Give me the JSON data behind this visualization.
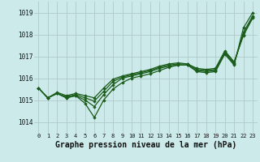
{
  "background_color": "#cceaea",
  "grid_color": "#b0c8c8",
  "line_color": "#1a5c1a",
  "marker_color": "#1a5c1a",
  "xlabel": "Graphe pression niveau de la mer (hPa)",
  "xlabel_fontsize": 7,
  "ylabel_ticks": [
    1014,
    1015,
    1016,
    1017,
    1018,
    1019
  ],
  "xtick_labels": [
    "0",
    "1",
    "2",
    "3",
    "4",
    "5",
    "6",
    "7",
    "8",
    "9",
    "10",
    "11",
    "12",
    "13",
    "14",
    "15",
    "16",
    "17",
    "18",
    "19",
    "20",
    "21",
    "22",
    "23"
  ],
  "xlim": [
    -0.5,
    23.5
  ],
  "ylim": [
    1013.5,
    1019.5
  ],
  "series": [
    [
      1015.55,
      1015.1,
      1015.3,
      1015.1,
      1015.2,
      1014.85,
      1014.2,
      1015.0,
      1015.5,
      1015.8,
      1016.0,
      1016.1,
      1016.2,
      1016.35,
      1016.5,
      1016.6,
      1016.6,
      1016.3,
      1016.25,
      1016.3,
      1017.1,
      1016.6,
      1018.3,
      1019.0
    ],
    [
      1015.55,
      1015.1,
      1015.3,
      1015.1,
      1015.2,
      1015.0,
      1014.7,
      1015.25,
      1015.7,
      1016.0,
      1016.1,
      1016.2,
      1016.3,
      1016.45,
      1016.55,
      1016.6,
      1016.6,
      1016.35,
      1016.3,
      1016.35,
      1017.15,
      1016.65,
      1018.1,
      1018.85
    ],
    [
      1015.55,
      1015.1,
      1015.3,
      1015.15,
      1015.25,
      1015.1,
      1014.95,
      1015.4,
      1015.85,
      1016.05,
      1016.15,
      1016.25,
      1016.35,
      1016.5,
      1016.6,
      1016.65,
      1016.65,
      1016.4,
      1016.35,
      1016.4,
      1017.2,
      1016.7,
      1018.0,
      1018.8
    ],
    [
      1015.55,
      1015.1,
      1015.35,
      1015.2,
      1015.3,
      1015.2,
      1015.1,
      1015.55,
      1015.95,
      1016.1,
      1016.2,
      1016.3,
      1016.4,
      1016.55,
      1016.65,
      1016.7,
      1016.65,
      1016.45,
      1016.4,
      1016.45,
      1017.25,
      1016.75,
      1017.95,
      1018.75
    ]
  ]
}
